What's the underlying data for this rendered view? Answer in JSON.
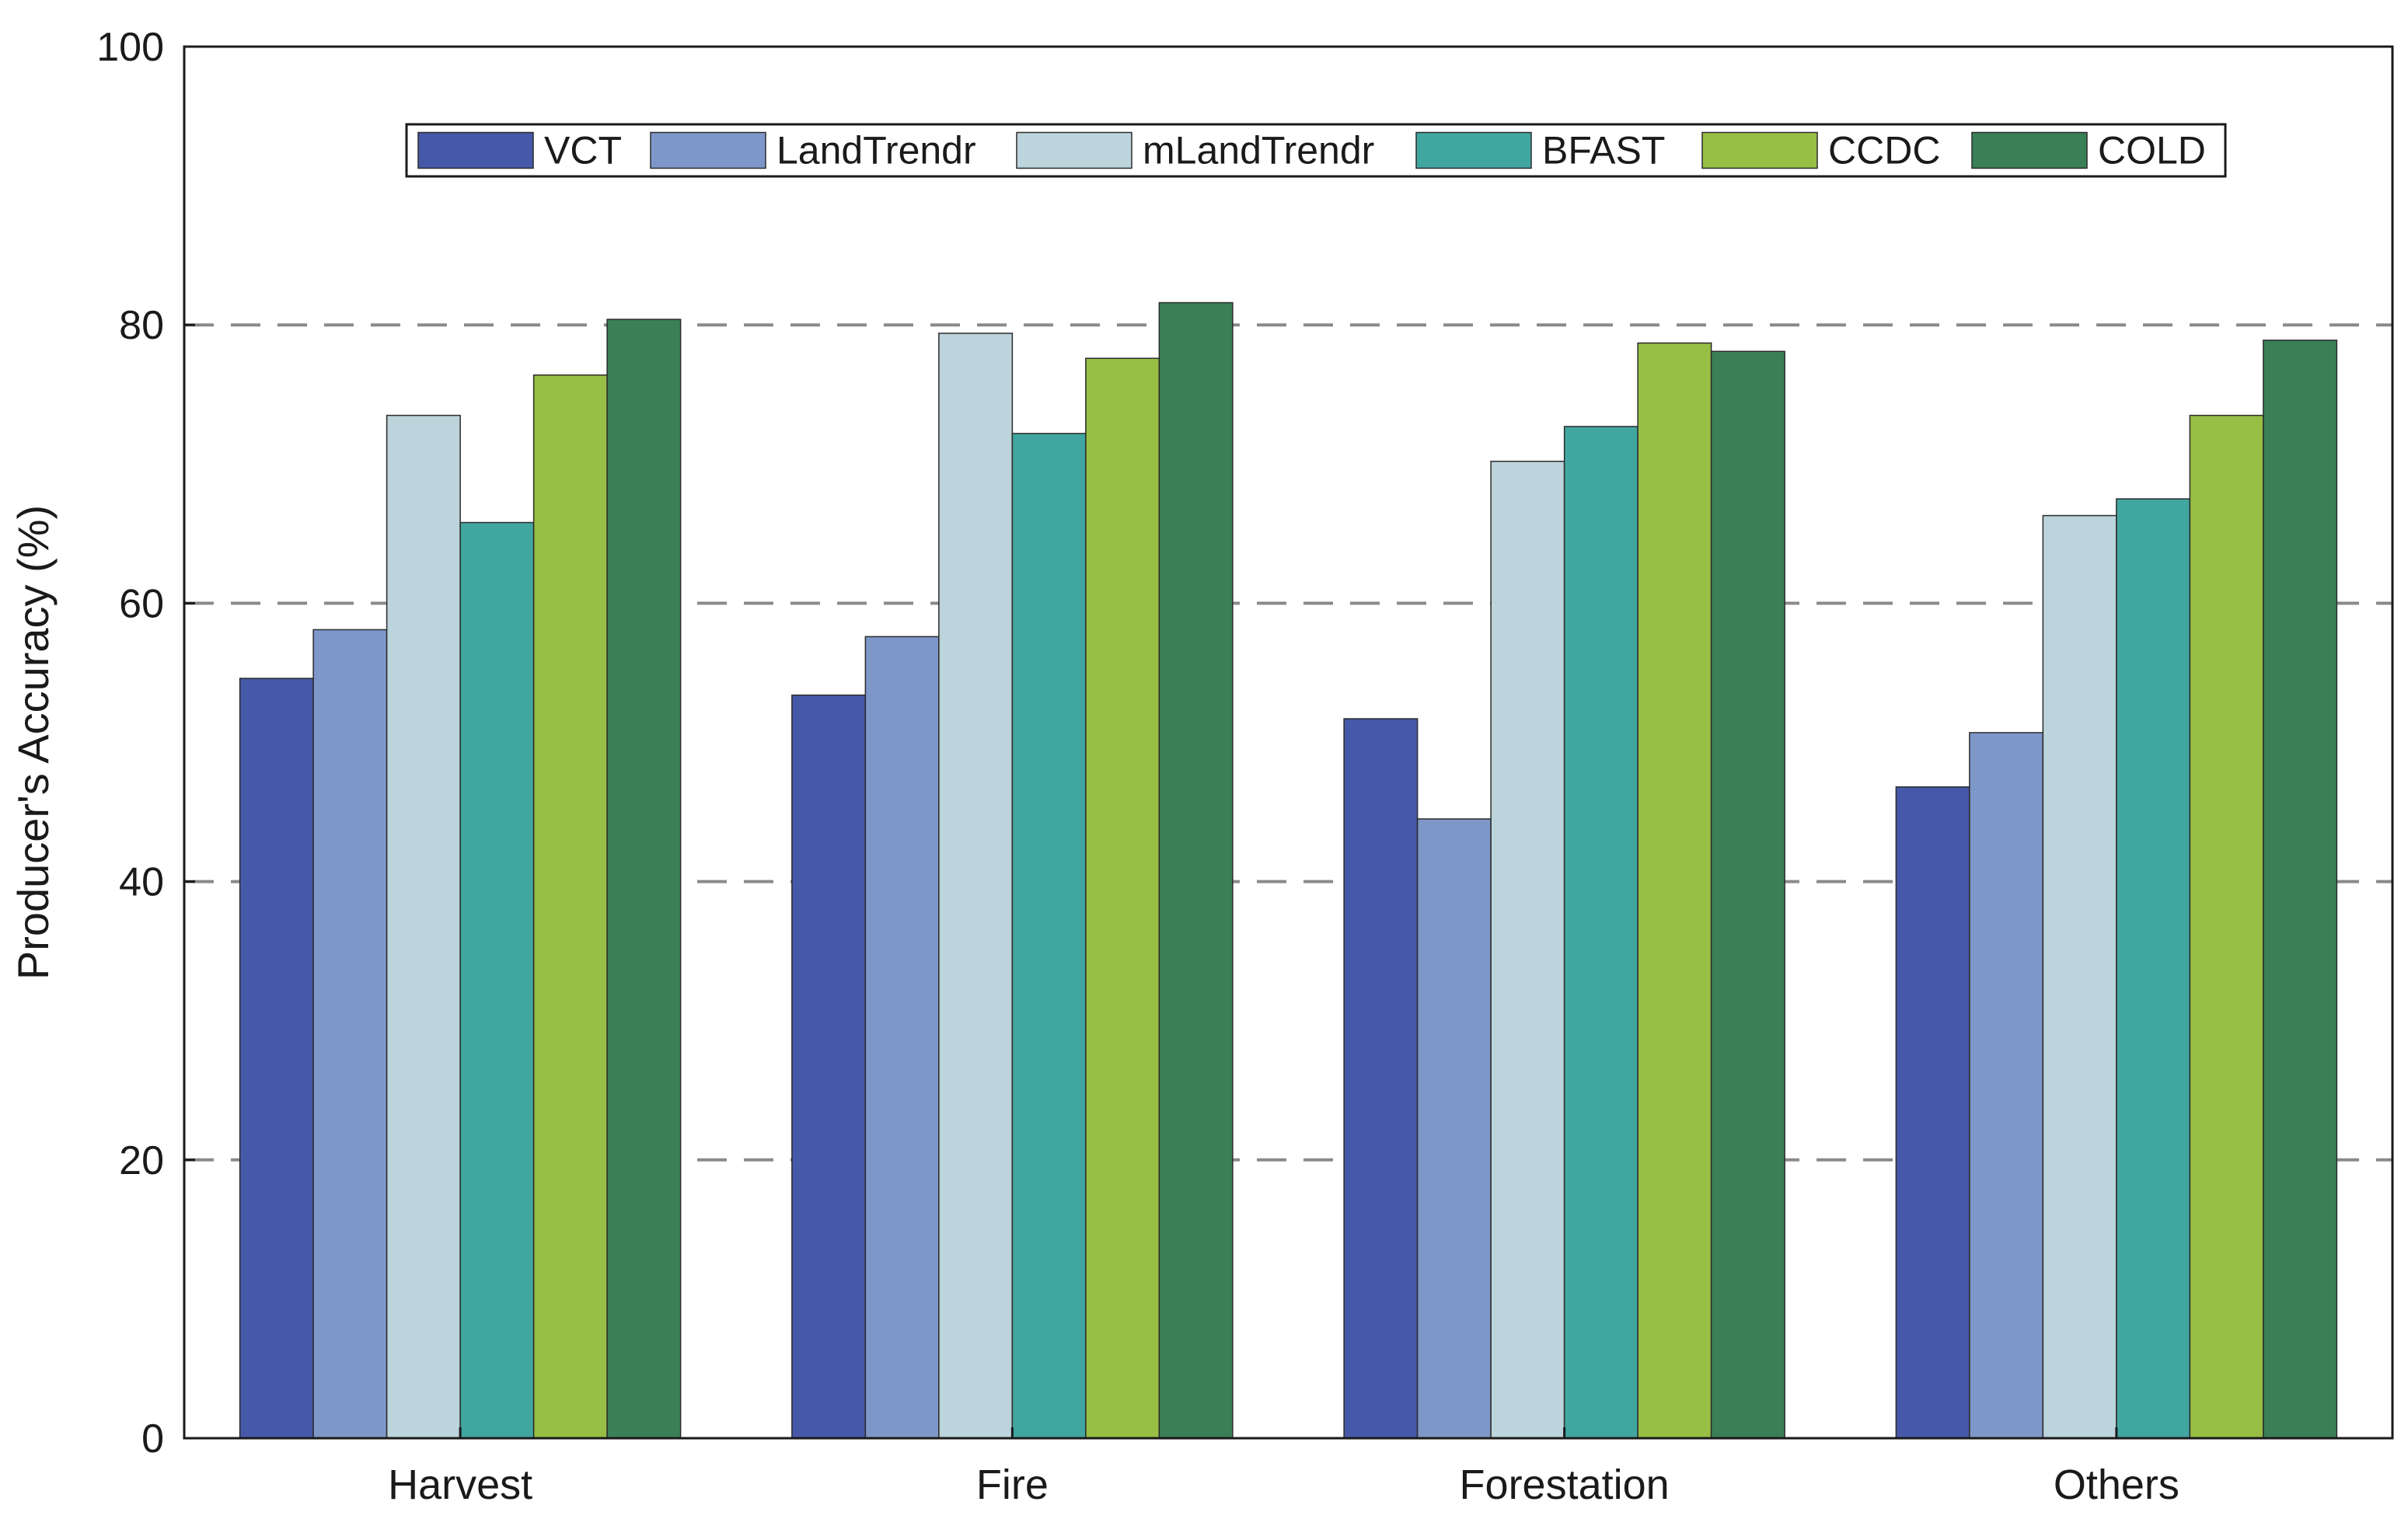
{
  "chart_data": {
    "type": "bar",
    "title": "",
    "xlabel": "",
    "ylabel": "Producer's Accuracy (%)",
    "ylim": [
      0,
      100
    ],
    "yticks": [
      0,
      20,
      40,
      60,
      80,
      100
    ],
    "ytick_labels": [
      "0",
      "20",
      "40",
      "60",
      "80",
      "100"
    ],
    "gridlines": [
      20,
      40,
      60,
      80
    ],
    "grid": true,
    "legend_position": "top",
    "categories": [
      "Harvest",
      "Fire",
      "Forestation",
      "Others"
    ],
    "series": [
      {
        "name": "VCT",
        "color": "#4659A8",
        "values": [
          54.6,
          53.4,
          51.7,
          46.8
        ]
      },
      {
        "name": "LandTrendr",
        "color": "#7E97C9",
        "values": [
          58.1,
          57.6,
          44.5,
          50.7
        ]
      },
      {
        "name": "mLandTrendr",
        "color": "#BCD4DB",
        "values": [
          73.5,
          79.4,
          70.2,
          66.3
        ]
      },
      {
        "name": "BFAST",
        "color": "#42A6A0",
        "values": [
          65.8,
          72.2,
          72.7,
          67.5
        ]
      },
      {
        "name": "CCDC",
        "color": "#97BF45",
        "values": [
          76.4,
          77.6,
          78.7,
          73.5
        ]
      },
      {
        "name": "COLD",
        "color": "#3A8056",
        "values": [
          80.4,
          81.6,
          78.1,
          78.9
        ]
      }
    ]
  }
}
